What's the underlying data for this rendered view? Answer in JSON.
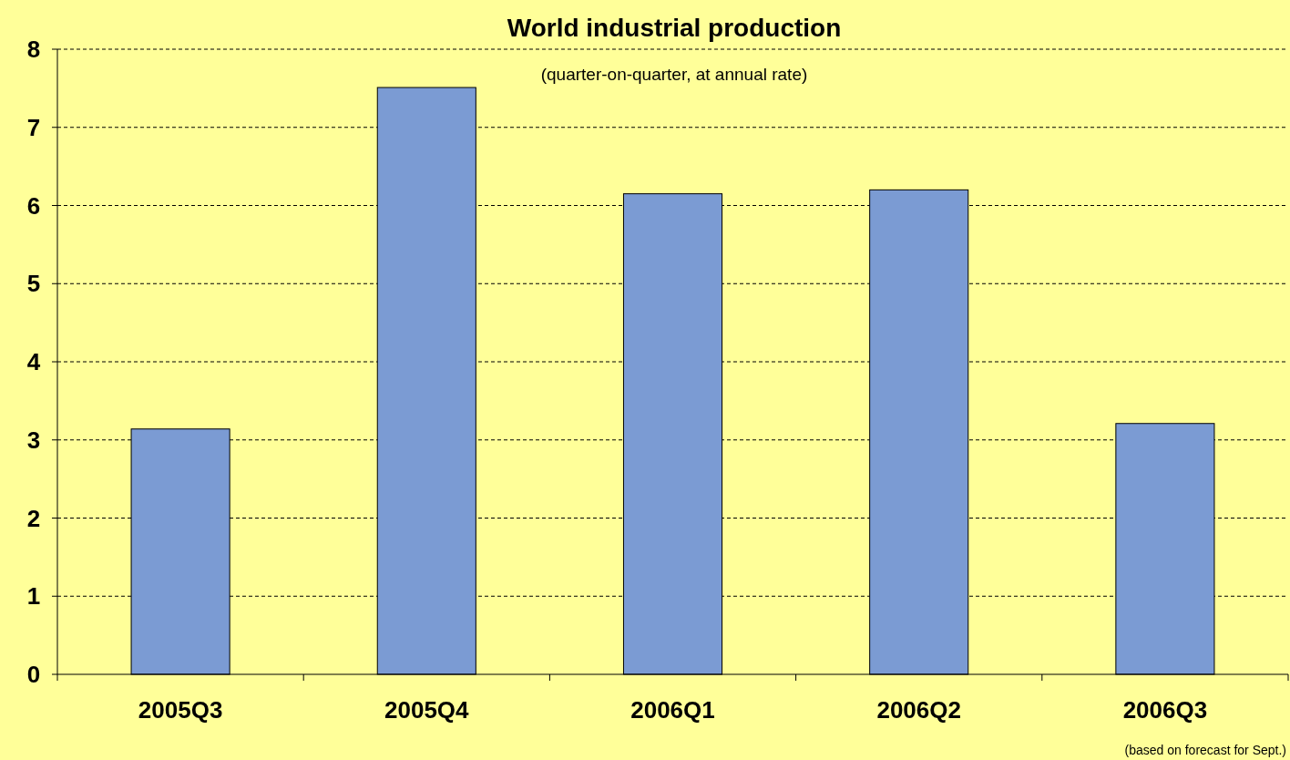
{
  "chart_data": {
    "type": "bar",
    "title": "World industrial production",
    "subtitle": "(quarter-on-quarter, at annual rate)",
    "categories": [
      "2005Q3",
      "2005Q4",
      "2006Q1",
      "2006Q2",
      "2006Q3"
    ],
    "values": [
      3.14,
      7.51,
      6.15,
      6.2,
      3.21
    ],
    "color": "#7b9bd3",
    "ylim": [
      0,
      8
    ],
    "yticks": [
      0,
      1,
      2,
      3,
      4,
      5,
      6,
      7,
      8
    ],
    "grid": "y",
    "annotations": [
      "(based on forecast for Sept.)"
    ]
  }
}
